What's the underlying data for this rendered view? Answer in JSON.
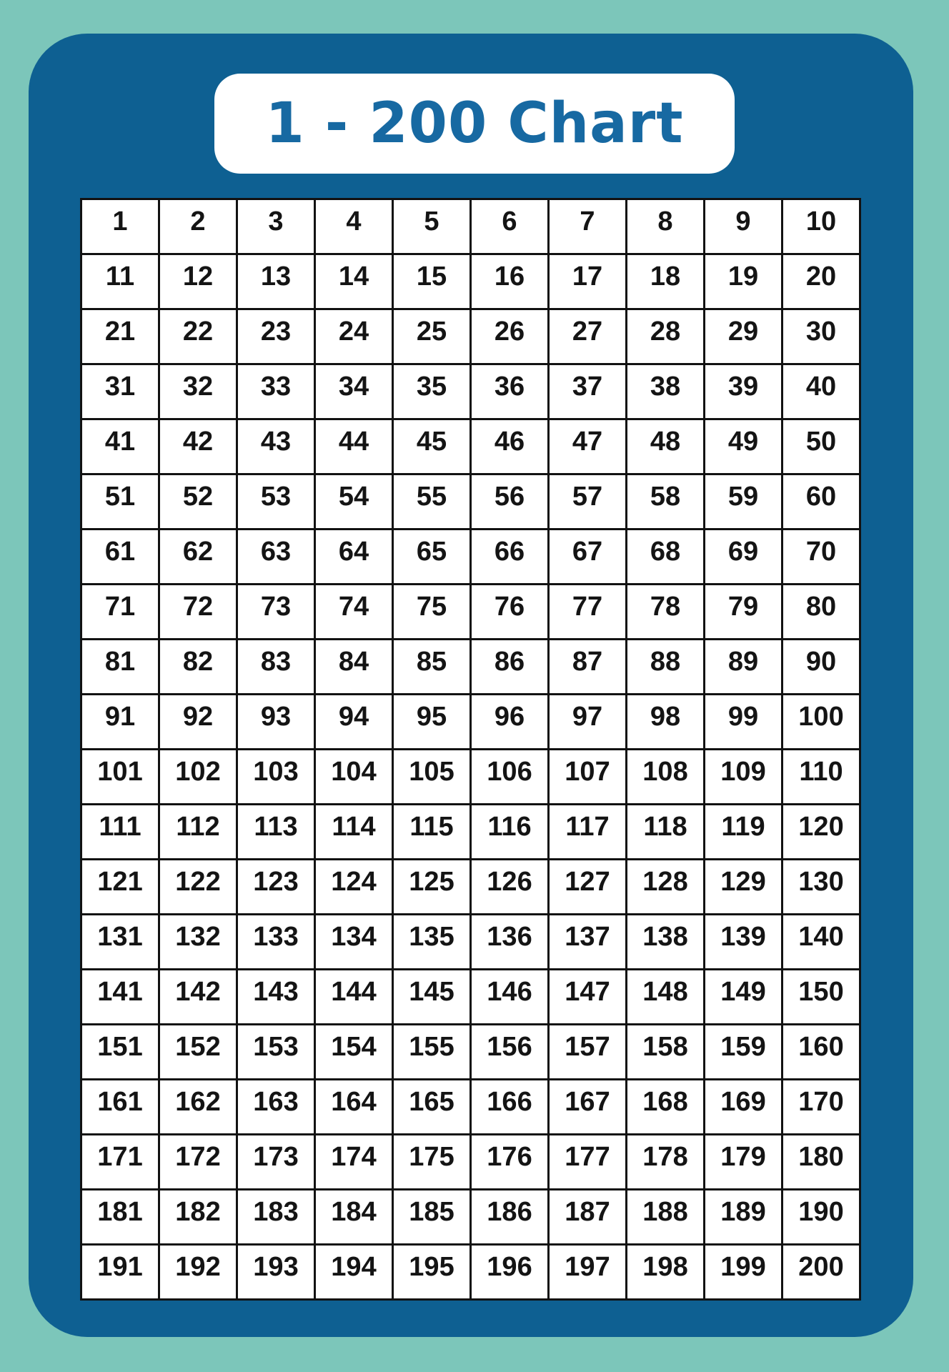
{
  "title": "1 - 200 Chart",
  "colors": {
    "page_background": "#7cc6ba",
    "panel_background": "#0e6092",
    "title_card_background": "#ffffff",
    "title_text": "#1769a2",
    "cell_background": "#ffffff",
    "cell_border": "#121212",
    "number_text": "#141414"
  },
  "grid": {
    "columns": 10,
    "row_count": 20,
    "first_number": 1,
    "last_number": 200,
    "rows": [
      [
        1,
        2,
        3,
        4,
        5,
        6,
        7,
        8,
        9,
        10
      ],
      [
        11,
        12,
        13,
        14,
        15,
        16,
        17,
        18,
        19,
        20
      ],
      [
        21,
        22,
        23,
        24,
        25,
        26,
        27,
        28,
        29,
        30
      ],
      [
        31,
        32,
        33,
        34,
        35,
        36,
        37,
        38,
        39,
        40
      ],
      [
        41,
        42,
        43,
        44,
        45,
        46,
        47,
        48,
        49,
        50
      ],
      [
        51,
        52,
        53,
        54,
        55,
        56,
        57,
        58,
        59,
        60
      ],
      [
        61,
        62,
        63,
        64,
        65,
        66,
        67,
        68,
        69,
        70
      ],
      [
        71,
        72,
        73,
        74,
        75,
        76,
        77,
        78,
        79,
        80
      ],
      [
        81,
        82,
        83,
        84,
        85,
        86,
        87,
        88,
        89,
        90
      ],
      [
        91,
        92,
        93,
        94,
        95,
        96,
        97,
        98,
        99,
        100
      ],
      [
        101,
        102,
        103,
        104,
        105,
        106,
        107,
        108,
        109,
        110
      ],
      [
        111,
        112,
        113,
        114,
        115,
        116,
        117,
        118,
        119,
        120
      ],
      [
        121,
        122,
        123,
        124,
        125,
        126,
        127,
        128,
        129,
        130
      ],
      [
        131,
        132,
        133,
        134,
        135,
        136,
        137,
        138,
        139,
        140
      ],
      [
        141,
        142,
        143,
        144,
        145,
        146,
        147,
        148,
        149,
        150
      ],
      [
        151,
        152,
        153,
        154,
        155,
        156,
        157,
        158,
        159,
        160
      ],
      [
        161,
        162,
        163,
        164,
        165,
        166,
        167,
        168,
        169,
        170
      ],
      [
        171,
        172,
        173,
        174,
        175,
        176,
        177,
        178,
        179,
        180
      ],
      [
        181,
        182,
        183,
        184,
        185,
        186,
        187,
        188,
        189,
        190
      ],
      [
        191,
        192,
        193,
        194,
        195,
        196,
        197,
        198,
        199,
        200
      ]
    ]
  }
}
